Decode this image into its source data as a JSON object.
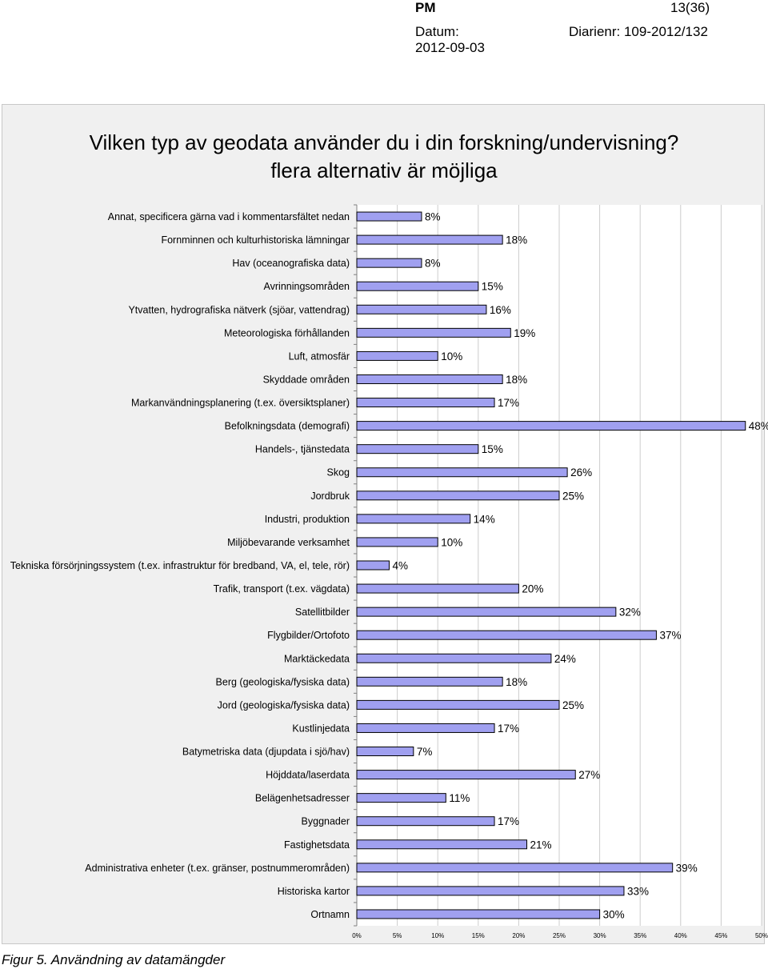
{
  "header": {
    "doc_type": "PM",
    "page": "13(36)",
    "datum_label": "Datum:",
    "diarienr": "Diarienr: 109-2012/132",
    "date": "2012-09-03"
  },
  "figure_caption": "Figur 5. Användning av datamängder",
  "colors": {
    "bar_fill": "#a0a0f0",
    "bar_stroke": "#000000",
    "plot_background": "#ffffff",
    "frame_background": "#f0f0f0",
    "gridline": "#cccccc"
  },
  "chart_data": {
    "type": "bar",
    "orientation": "horizontal",
    "title": "Vilken typ av geodata använder du i din forskning/undervisning?",
    "subtitle": "flera alternativ är möjliga",
    "xlabel": "",
    "ylabel": "",
    "xlim": [
      0,
      50
    ],
    "x_ticks": [
      "0%",
      "5%",
      "10%",
      "15%",
      "20%",
      "25%",
      "30%",
      "35%",
      "40%",
      "45%",
      "50%"
    ],
    "grid": true,
    "legend": "none",
    "categories": [
      "Annat, specificera gärna vad i kommentarsfältet nedan",
      "Fornminnen och kulturhistoriska lämningar",
      "Hav (oceanografiska data)",
      "Avrinningsområden",
      "Ytvatten, hydrografiska nätverk (sjöar, vattendrag)",
      "Meteorologiska förhållanden",
      "Luft, atmosfär",
      "Skyddade områden",
      "Markanvändningsplanering (t.ex. översiktsplaner)",
      "Befolkningsdata (demografi)",
      "Handels-, tjänstedata",
      "Skog",
      "Jordbruk",
      "Industri, produktion",
      "Miljöbevarande verksamhet",
      "Tekniska försörjningssystem (t.ex. infrastruktur för bredband, VA, el, tele, rör)",
      "Trafik, transport (t.ex. vägdata)",
      "Satellitbilder",
      "Flygbilder/Ortofoto",
      "Marktäckedata",
      "Berg (geologiska/fysiska data)",
      "Jord (geologiska/fysiska data)",
      "Kustlinjedata",
      "Batymetriska data (djupdata i sjö/hav)",
      "Höjddata/laserdata",
      "Belägenhetsadresser",
      "Byggnader",
      "Fastighetsdata",
      "Administrativa enheter (t.ex. gränser, postnummerområden)",
      "Historiska kartor",
      "Ortnamn"
    ],
    "values": [
      8,
      18,
      8,
      15,
      16,
      19,
      10,
      18,
      17,
      48,
      15,
      26,
      25,
      14,
      10,
      4,
      20,
      32,
      37,
      24,
      18,
      25,
      17,
      7,
      27,
      11,
      17,
      21,
      39,
      33,
      30
    ],
    "value_labels": [
      "8%",
      "18%",
      "8%",
      "15%",
      "16%",
      "19%",
      "10%",
      "18%",
      "17%",
      "48%",
      "15%",
      "26%",
      "25%",
      "14%",
      "10%",
      "4%",
      "20%",
      "32%",
      "37%",
      "24%",
      "18%",
      "25%",
      "17%",
      "7%",
      "27%",
      "11%",
      "17%",
      "21%",
      "39%",
      "33%",
      "30%"
    ]
  }
}
